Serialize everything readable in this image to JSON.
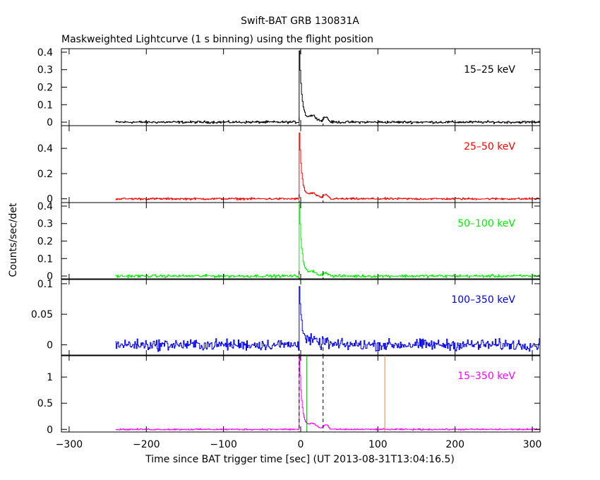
{
  "chart_data": {
    "type": "line",
    "title": "Swift-BAT GRB 130831A",
    "subtitle": "Maskweighted Lightcurve (1 s binning) using the flight position",
    "xlabel": "Time since BAT trigger time [sec] (UT 2013-08-31T13:04:16.5)",
    "ylabel": "Counts/sec/det",
    "xlim": [
      -310,
      310
    ],
    "x_ticks": [
      -300,
      -200,
      -100,
      0,
      100,
      200,
      300
    ],
    "x_tick_labels": [
      "−300",
      "−200",
      "−100",
      "0",
      "100",
      "200",
      "300"
    ],
    "data_start": -240,
    "markers": [
      {
        "x": -2,
        "color": "#000000",
        "style": "dashed"
      },
      {
        "x": 8,
        "color": "#009900",
        "style": "solid"
      },
      {
        "x": 29,
        "color": "#000000",
        "style": "dashed"
      },
      {
        "x": 109,
        "color": "#ff8000",
        "style": "solid"
      }
    ],
    "panels": [
      {
        "name": "15–25 keV",
        "color": "#000000",
        "ylim": [
          -0.02,
          0.42
        ],
        "yticks": [
          0,
          0.1,
          0.2,
          0.3,
          0.4
        ],
        "ytick_labels": [
          "0",
          "0.1",
          "0.2",
          "0.3",
          "0.4"
        ],
        "peak": 0.41,
        "noise": 0.006,
        "tail": 0.06
      },
      {
        "name": "25–50 keV",
        "color": "#ff0000",
        "ylim": [
          -0.03,
          0.58
        ],
        "yticks": [
          0,
          0.2,
          0.4
        ],
        "ytick_labels": [
          "0",
          "0.2",
          "0.4"
        ],
        "peak": 0.52,
        "noise": 0.007,
        "tail": 0.07
      },
      {
        "name": "50–100 keV",
        "color": "#00ee00",
        "ylim": [
          -0.02,
          0.42
        ],
        "yticks": [
          0,
          0.1,
          0.2,
          0.3,
          0.4
        ],
        "ytick_labels": [
          "0",
          "0.1",
          "0.2",
          "0.3",
          "0.4"
        ],
        "peak": 0.41,
        "noise": 0.007,
        "tail": 0.04
      },
      {
        "name": "100–350 keV",
        "color": "#0000ee",
        "ylim": [
          -0.018,
          0.108
        ],
        "yticks": [
          0,
          0.05,
          0.1
        ],
        "ytick_labels": [
          "0",
          "0.05",
          "0.1"
        ],
        "peak": 0.1,
        "noise": 0.008,
        "tail": 0.012
      },
      {
        "name": "15–350 keV",
        "color": "#ff00ff",
        "ylim": [
          -0.05,
          1.42
        ],
        "yticks": [
          0,
          0.5,
          1
        ],
        "ytick_labels": [
          "0",
          "0.5",
          "1"
        ],
        "peak": 1.4,
        "noise": 0.012,
        "tail": 0.18
      }
    ]
  }
}
